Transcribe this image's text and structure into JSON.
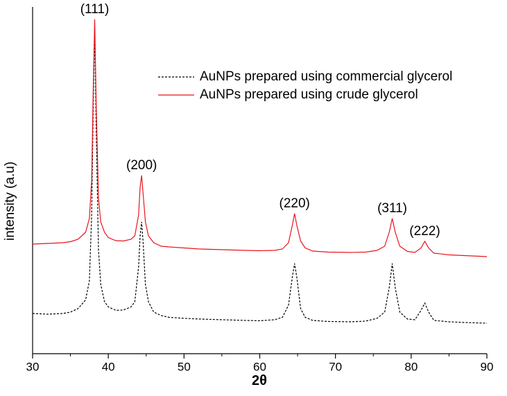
{
  "chart_data": {
    "type": "line",
    "xlabel": "2θ",
    "ylabel": "intensity (a.u)",
    "x": [
      30,
      32,
      34,
      35,
      36,
      37,
      37.5,
      37.8,
      38.0,
      38.2,
      38.4,
      38.7,
      39,
      39.5,
      40,
      41,
      42,
      43,
      43.5,
      44,
      44.2,
      44.4,
      44.6,
      44.9,
      45.3,
      46,
      47,
      48,
      50,
      52,
      55,
      58,
      60,
      62,
      63,
      63.8,
      64.3,
      64.6,
      64.9,
      65.4,
      66,
      67,
      69,
      72,
      74,
      75.5,
      76.5,
      77.1,
      77.5,
      77.9,
      78.5,
      79.5,
      80.5,
      81.3,
      81.8,
      82.3,
      83,
      85,
      87,
      90
    ],
    "series": [
      {
        "name": "AuNPs prepared using commercial glycerol",
        "color": "#000000",
        "dash": true,
        "values": [
          11.6,
          11.4,
          11.6,
          12,
          13,
          15.5,
          21,
          40,
          70,
          94,
          65,
          30,
          20,
          15,
          13.5,
          12.5,
          12.6,
          13.5,
          15,
          25,
          34,
          38,
          32,
          20,
          15,
          12,
          11,
          10.5,
          10.2,
          10,
          9.8,
          9.6,
          9.5,
          9.8,
          10.5,
          14,
          22,
          26,
          22,
          13,
          10.5,
          9.6,
          9.3,
          9.2,
          9.4,
          10.2,
          12,
          19,
          26,
          19,
          12,
          10,
          9.8,
          12.5,
          14.6,
          12,
          9.6,
          9.2,
          9,
          8.8
        ]
      },
      {
        "name": "AuNPs prepared using crude glycerol",
        "color": "#e8141b",
        "dash": false,
        "values": [
          31.6,
          31.8,
          32,
          32.3,
          33,
          35,
          39,
          50,
          75,
          96.4,
          72,
          45,
          38,
          35,
          33.5,
          32.6,
          32.5,
          33,
          34,
          40,
          48,
          51.4,
          46,
          38,
          34,
          32,
          31,
          30.8,
          30.5,
          30.2,
          30,
          29.8,
          29.7,
          29.8,
          30.2,
          32,
          37,
          40.4,
          37,
          32.5,
          30.5,
          29.6,
          29.3,
          29.2,
          29.3,
          29.8,
          31,
          35,
          39,
          35,
          31,
          29.5,
          29.2,
          30.5,
          32.4,
          30.5,
          29,
          28.5,
          28.3,
          28
        ]
      }
    ],
    "annotations": [
      {
        "text": "(111)",
        "x": 38.2
      },
      {
        "text": "(200)",
        "x": 44.4
      },
      {
        "text": "(220)",
        "x": 64.6
      },
      {
        "text": "(311)",
        "x": 77.5
      },
      {
        "text": "(222)",
        "x": 81.8
      }
    ],
    "xlim": [
      30,
      90
    ],
    "xticks": [
      30,
      40,
      50,
      60,
      70,
      80,
      90
    ],
    "xminorticks": [
      35,
      45,
      55,
      65,
      75,
      85
    ],
    "ylim": [
      0,
      100
    ],
    "legend": "upper right"
  }
}
